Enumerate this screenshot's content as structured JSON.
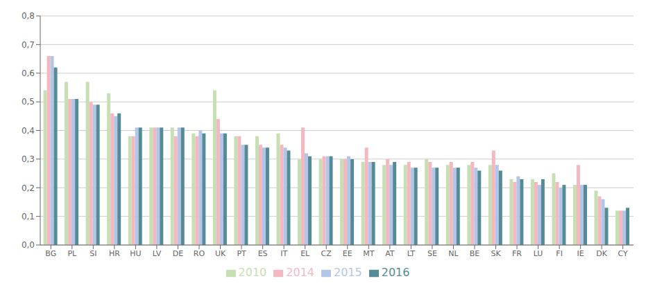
{
  "chart_data": {
    "type": "bar",
    "categories": [
      "BG",
      "PL",
      "SI",
      "HR",
      "HU",
      "LV",
      "DE",
      "RO",
      "UK",
      "PT",
      "ES",
      "IT",
      "EL",
      "CZ",
      "EE",
      "MT",
      "AT",
      "LT",
      "SE",
      "NL",
      "BE",
      "SK",
      "FR",
      "LU",
      "FI",
      "IE",
      "DK",
      "CY"
    ],
    "series": [
      {
        "name": "2010",
        "color": "#c6e0b4",
        "values": [
          0.54,
          0.57,
          0.57,
          0.53,
          0.38,
          0.41,
          0.41,
          0.39,
          0.54,
          0.38,
          0.38,
          0.39,
          0.3,
          0.3,
          0.3,
          0.29,
          0.28,
          0.28,
          0.3,
          0.28,
          0.28,
          0.28,
          0.23,
          0.23,
          0.25,
          0.21,
          0.19,
          0.12
        ]
      },
      {
        "name": "2014",
        "color": "#f4b8c1",
        "values": [
          0.66,
          0.51,
          0.5,
          0.46,
          0.38,
          0.41,
          0.38,
          0.38,
          0.44,
          0.38,
          0.35,
          0.35,
          0.41,
          0.31,
          0.3,
          0.34,
          0.3,
          0.29,
          0.29,
          0.29,
          0.29,
          0.33,
          0.22,
          0.22,
          0.22,
          0.28,
          0.17,
          0.12
        ]
      },
      {
        "name": "2015",
        "color": "#b4c6e7",
        "values": [
          0.66,
          0.51,
          0.49,
          0.45,
          0.41,
          0.41,
          0.41,
          0.4,
          0.39,
          0.35,
          0.34,
          0.34,
          0.32,
          0.31,
          0.31,
          0.29,
          0.28,
          0.27,
          0.27,
          0.27,
          0.27,
          0.28,
          0.24,
          0.21,
          0.2,
          0.21,
          0.16,
          0.12
        ]
      },
      {
        "name": "2016",
        "color": "#548b96",
        "values": [
          0.62,
          0.51,
          0.49,
          0.46,
          0.41,
          0.41,
          0.41,
          0.39,
          0.39,
          0.35,
          0.34,
          0.33,
          0.31,
          0.31,
          0.3,
          0.29,
          0.29,
          0.27,
          0.27,
          0.27,
          0.26,
          0.26,
          0.23,
          0.23,
          0.21,
          0.21,
          0.13,
          0.13
        ]
      }
    ],
    "ylim": [
      0,
      0.8
    ],
    "yticks": [
      {
        "value": 0.0,
        "label": "0,0"
      },
      {
        "value": 0.1,
        "label": "0,1"
      },
      {
        "value": 0.2,
        "label": "0,2"
      },
      {
        "value": 0.3,
        "label": "0,3"
      },
      {
        "value": 0.4,
        "label": "0,4"
      },
      {
        "value": 0.5,
        "label": "0,5"
      },
      {
        "value": 0.6,
        "label": "0,6"
      },
      {
        "value": 0.7,
        "label": "0,7"
      },
      {
        "value": 0.8,
        "label": "0,8"
      }
    ],
    "grid": true,
    "legend": "bottom"
  }
}
